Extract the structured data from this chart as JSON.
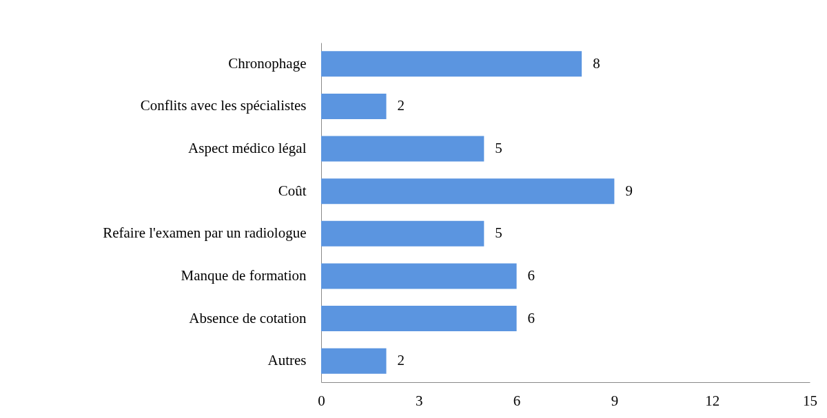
{
  "chart_data": {
    "type": "bar",
    "orientation": "horizontal",
    "categories": [
      "Chronophage",
      "Conflits avec les spécialistes",
      "Aspect médico légal",
      "Coût",
      "Refaire l'examen par un radiologue",
      "Manque de formation",
      "Absence de cotation",
      "Autres"
    ],
    "values": [
      8,
      2,
      5,
      9,
      5,
      6,
      6,
      2
    ],
    "color": "#5b95e0",
    "xlim": [
      0,
      15
    ],
    "xticks": [
      0,
      3,
      6,
      9,
      12,
      15
    ],
    "data_labels": true,
    "grid": false
  }
}
